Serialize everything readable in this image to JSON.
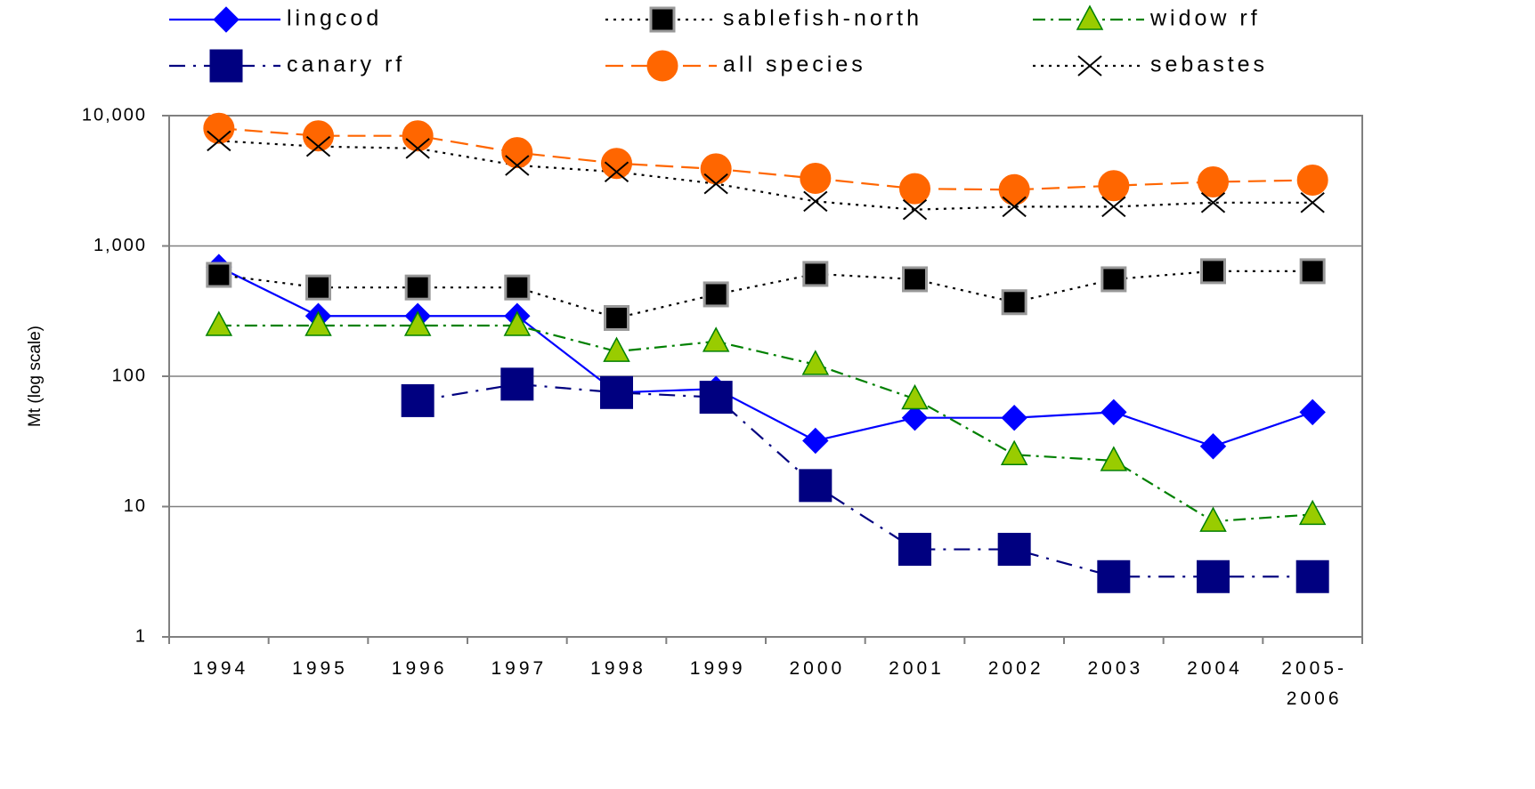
{
  "chart_data": {
    "type": "line",
    "y_label": "Mt (log scale)",
    "log_scale": true,
    "grid": true,
    "categories": [
      "1994",
      "1995",
      "1996",
      "1997",
      "1998",
      "1999",
      "2000",
      "2001",
      "2002",
      "2003",
      "2004",
      "2005-\n2006"
    ],
    "ylim": [
      1,
      10000
    ],
    "yticks": [
      1,
      10,
      100,
      {
        "value": 1000,
        "label": "1,000"
      },
      {
        "value": 10000,
        "label": "10,000"
      }
    ],
    "series": [
      {
        "name": "lingcod",
        "color": "#0000ff",
        "marker": "diamond",
        "marker_fill": "#0000ff",
        "line_style": "solid",
        "values": [
          690,
          290,
          290,
          290,
          75,
          80,
          32,
          48,
          48,
          53,
          29,
          53
        ]
      },
      {
        "name": "sablefish-north",
        "color": "#000000",
        "marker": "square",
        "marker_fill": "#000000",
        "line_style": "dotted",
        "values": [
          600,
          480,
          480,
          480,
          280,
          425,
          610,
          555,
          370,
          555,
          640,
          640
        ]
      },
      {
        "name": "widow rf",
        "color": "#008000",
        "marker": "triangle",
        "marker_fill": "#99cc00",
        "line_style": "dashdot",
        "values": [
          245,
          245,
          245,
          245,
          155,
          185,
          123,
          67,
          25,
          22.5,
          7.7,
          8.7
        ]
      },
      {
        "name": "canary rf",
        "color": "#000080",
        "marker": "bigsquare",
        "marker_fill": "#000080",
        "line_style": "longdashdot",
        "values": [
          null,
          null,
          65,
          87,
          75,
          69,
          14.5,
          4.7,
          4.7,
          2.9,
          2.9,
          2.9
        ]
      },
      {
        "name": "all species",
        "color": "#ff6600",
        "marker": "circle",
        "marker_fill": "#ff6600",
        "line_style": "dashed",
        "values": [
          8000,
          7000,
          7000,
          5200,
          4300,
          3900,
          3300,
          2750,
          2700,
          2900,
          3100,
          3200
        ]
      },
      {
        "name": "sebastes",
        "color": "#000000",
        "marker": "x",
        "marker_fill": "none",
        "line_style": "dotted",
        "values": [
          6400,
          5800,
          5600,
          4150,
          3700,
          3000,
          2200,
          1900,
          2000,
          2000,
          2150,
          2150
        ]
      }
    ]
  }
}
